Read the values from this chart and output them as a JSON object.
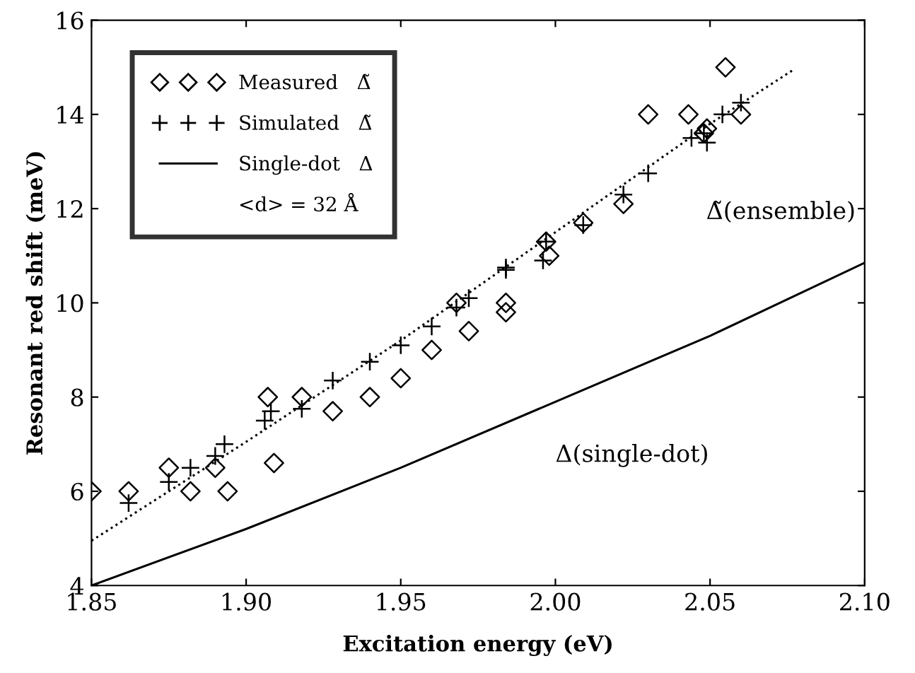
{
  "chart_data": {
    "type": "scatter",
    "xlabel": "Excitation energy (eV)",
    "ylabel": "Resonant red shift (meV)",
    "xlim": [
      1.85,
      2.1
    ],
    "ylim": [
      4,
      16
    ],
    "xticks": [
      {
        "value": 1.85,
        "label": "1.85"
      },
      {
        "value": 1.9,
        "label": "1.90"
      },
      {
        "value": 1.95,
        "label": "1.95"
      },
      {
        "value": 2.0,
        "label": "2.00"
      },
      {
        "value": 2.05,
        "label": "2.05"
      },
      {
        "value": 2.1,
        "label": "2.10"
      }
    ],
    "yticks": [
      4,
      6,
      8,
      10,
      12,
      14,
      16
    ],
    "grid": false,
    "legend": "top left",
    "series": [
      {
        "name": "Measured   Δ̃",
        "marker": "diamond",
        "color": "#000000",
        "x": [
          1.85,
          1.862,
          1.875,
          1.882,
          1.89,
          1.894,
          1.907,
          1.909,
          1.918,
          1.928,
          1.94,
          1.95,
          1.96,
          1.968,
          1.972,
          1.984,
          1.984,
          1.997,
          1.998,
          2.009,
          2.022,
          2.03,
          2.043,
          2.048,
          2.049,
          2.055,
          2.06
        ],
        "values": [
          6,
          6,
          6.5,
          6,
          6.5,
          6,
          8,
          6.6,
          8,
          7.7,
          8,
          8.4,
          9,
          10,
          9.4,
          10,
          9.8,
          11.3,
          11,
          11.7,
          12.1,
          14,
          14,
          13.6,
          13.7,
          15,
          14
        ]
      },
      {
        "name": "Simulated   Δ̃",
        "marker": "cross",
        "color": "#000000",
        "x": [
          1.862,
          1.875,
          1.882,
          1.89,
          1.893,
          1.906,
          1.908,
          1.918,
          1.928,
          1.94,
          1.95,
          1.96,
          1.968,
          1.972,
          1.984,
          1.984,
          1.996,
          1.997,
          2.009,
          2.022,
          2.03,
          2.044,
          2.049,
          2.048,
          2.054,
          2.06
        ],
        "values": [
          5.75,
          6.2,
          6.5,
          6.75,
          7,
          7.5,
          7.7,
          7.75,
          8.35,
          8.75,
          9.1,
          9.5,
          9.9,
          10.1,
          10.7,
          10.75,
          10.9,
          11.3,
          11.65,
          12.3,
          12.75,
          13.5,
          13.4,
          13.6,
          14,
          14.25
        ]
      },
      {
        "name": "Single-dot   Δ",
        "type": "line",
        "line_style": "solid",
        "color": "#000000",
        "x": [
          1.85,
          1.9,
          1.95,
          2.0,
          2.05,
          2.1
        ],
        "values": [
          4.0,
          5.2,
          6.5,
          7.9,
          9.3,
          10.85
        ]
      },
      {
        "type": "line",
        "line_style": "dotted",
        "color": "#000000",
        "x": [
          1.85,
          1.9,
          1.95,
          2.0,
          2.05,
          2.077
        ],
        "values": [
          4.95,
          7.05,
          9.2,
          11.5,
          13.8,
          14.95
        ]
      }
    ],
    "annotations": [
      "<d> = 32 Å",
      "Δ̃(ensemble)",
      "Δ(single-dot)"
    ]
  }
}
